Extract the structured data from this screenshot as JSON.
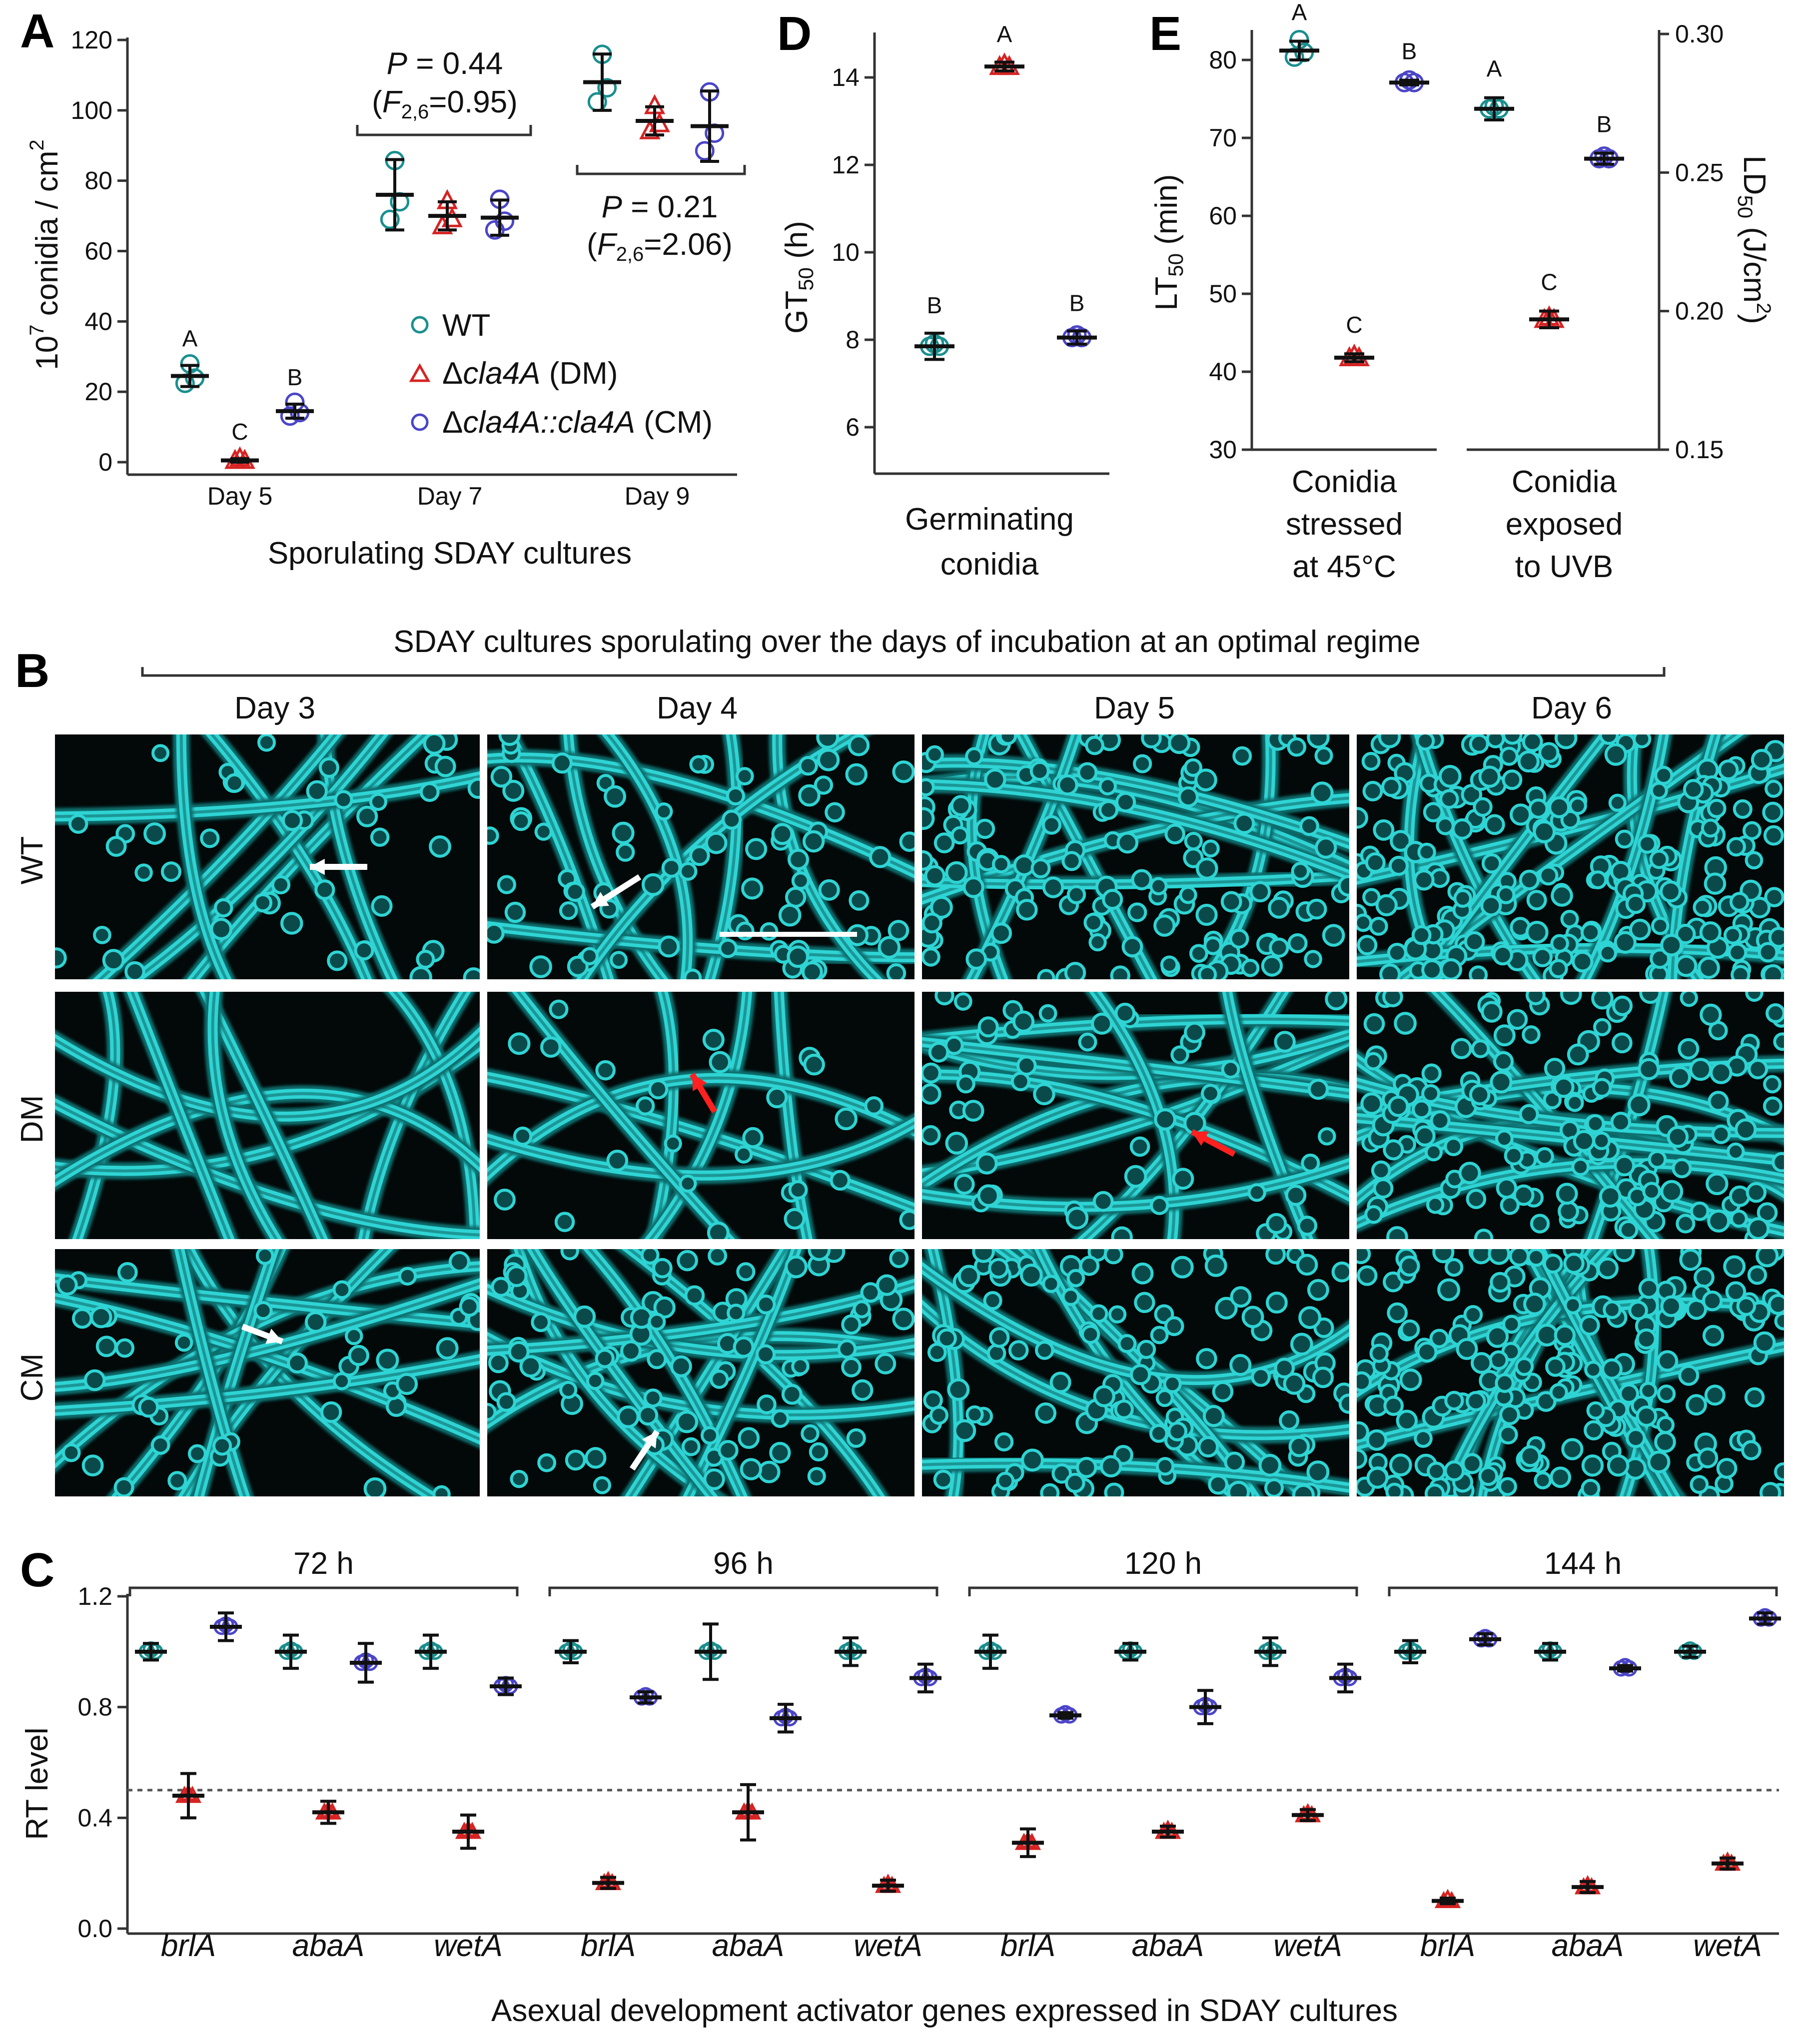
{
  "colors": {
    "wt": "#1b8f8f",
    "dm": "#d62222",
    "cm": "#4b45c8",
    "micro_bg": "#030808",
    "hypha": "#2fd4d4"
  },
  "panels": {
    "A": "A",
    "B": "B",
    "C": "C",
    "D": "D",
    "E": "E"
  },
  "panel_a": {
    "ylabel_base": "10",
    "ylabel_exp": "7",
    "ylabel_rest": " conidia / cm",
    "ylabel_sq": "2",
    "xlabel": "Sporulating SDAY cultures",
    "stat1": {
      "p": "P = 0.44",
      "f_open": "(F",
      "f_sub": "2,6",
      "f_val": "=0.95)"
    },
    "stat2": {
      "p": "P = 0.21",
      "f_open": "(F",
      "f_sub": "2,6",
      "f_val": "=2.06)"
    },
    "legend": [
      {
        "symbol": "circle",
        "prefix": "",
        "italic": "",
        "suffix": "WT"
      },
      {
        "symbol": "triangle",
        "prefix": "Δ",
        "italic": "cla4A",
        "suffix": " (DM)"
      },
      {
        "symbol": "circle-blue",
        "prefix": "Δ",
        "italic": "cla4A::cla4A",
        "suffix": " (CM)"
      }
    ]
  },
  "panel_d": {
    "ylabel": "GT",
    "ylabel_sub": "50",
    "ylabel_unit": " (h)",
    "xlabel_1": "Germinating",
    "xlabel_2": "conidia"
  },
  "panel_e": {
    "ylabel_left": "LT",
    "ylabel_left_sub": "50",
    "ylabel_left_unit": " (min)",
    "ylabel_right": "LD",
    "ylabel_right_sub": "50",
    "ylabel_right_unit": " (J/cm",
    "ylabel_right_sq": "2",
    "ylabel_right_close": ")",
    "group1": [
      "Conidia",
      "stressed",
      "at 45°C"
    ],
    "group2": [
      "Conidia",
      "exposed",
      "to UVB"
    ]
  },
  "panel_b": {
    "title": "SDAY cultures sporulating over the days of incubation at an optimal regime",
    "columns": [
      "Day 3",
      "Day 4",
      "Day 5",
      "Day 6"
    ],
    "rows": [
      "WT",
      "DM",
      "CM"
    ]
  },
  "panel_c": {
    "ylabel": "RT level",
    "xlabel": "Asexual development activator genes expressed in SDAY cultures",
    "groups": [
      "72 h",
      "96 h",
      "120 h",
      "144 h"
    ],
    "genes": [
      "brlA",
      "abaA",
      "wetA",
      "brlA",
      "abaA",
      "wetA",
      "brlA",
      "abaA",
      "wetA",
      "brlA",
      "abaA",
      "wetA"
    ]
  },
  "chart_data": [
    {
      "type": "scatter",
      "panel": "A",
      "xlabel": "Sporulating SDAY cultures",
      "ylabel": "10^7 conidia / cm^2",
      "categories": [
        "Day 5",
        "Day 7",
        "Day 9"
      ],
      "ylim": [
        0,
        120
      ],
      "yticks": [
        0,
        20,
        40,
        60,
        80,
        100,
        120
      ],
      "series": [
        {
          "name": "WT",
          "means": [
            24.5,
            76,
            108
          ],
          "sd": [
            3,
            10,
            8
          ]
        },
        {
          "name": "Δcla4A (DM)",
          "means": [
            0.5,
            70,
            97
          ],
          "sd": [
            0.5,
            4,
            4
          ]
        },
        {
          "name": "Δcla4A::cla4A (CM)",
          "means": [
            14.5,
            69.5,
            95.5
          ],
          "sd": [
            2,
            5,
            10
          ]
        }
      ],
      "letters": {
        "Day 5": [
          "A",
          "C",
          "B"
        ]
      }
    },
    {
      "type": "scatter",
      "panel": "D",
      "ylabel": "GT50 (h)",
      "ylim": [
        5.5,
        15
      ],
      "yticks": [
        6,
        8,
        10,
        12,
        14
      ],
      "categories": [
        "WT",
        "DM",
        "CM"
      ],
      "values": [
        7.85,
        14.25,
        8.05
      ],
      "sd": [
        0.3,
        0.1,
        0.15
      ],
      "letters": [
        "B",
        "A",
        "B"
      ]
    },
    {
      "type": "scatter",
      "panel": "E",
      "ylabel": "LT50 (min)",
      "ylabel_right": "LD50 (J/cm2)",
      "ylim": [
        30,
        85
      ],
      "yticks": [
        30,
        40,
        50,
        60,
        70,
        80
      ],
      "ylim_right": [
        0.15,
        0.3
      ],
      "yticks_right": [
        "0.15",
        "0.20",
        "0.25",
        "0.30"
      ],
      "groups": [
        "Conidia stressed at 45°C",
        "Conidia exposed to UVB"
      ],
      "series": [
        {
          "group": "Conidia stressed at 45°C",
          "axis": "left",
          "values": [
            81.2,
            41.8,
            77.1
          ],
          "sd": [
            1.2,
            0.5,
            0.3
          ],
          "letters": [
            "A",
            "C",
            "B"
          ]
        },
        {
          "group": "Conidia exposed to UVB",
          "axis": "right",
          "values": [
            0.273,
            0.197,
            0.255
          ],
          "sd": [
            0.004,
            0.003,
            0.002
          ],
          "letters": [
            "A",
            "C",
            "B"
          ]
        }
      ]
    },
    {
      "type": "scatter",
      "panel": "C",
      "ylabel": "RT level",
      "ylim": [
        0,
        1.2
      ],
      "yticks": [
        "0.0",
        "0.4",
        "0.8",
        "1.2"
      ],
      "reference_line": 0.5,
      "groups": [
        "72 h",
        "96 h",
        "120 h",
        "144 h"
      ],
      "genes": [
        "brlA",
        "abaA",
        "wetA"
      ],
      "series": [
        {
          "name": "WT",
          "values": [
            1.0,
            1.0,
            1.0,
            1.0,
            1.0,
            1.0,
            1.0,
            1.0,
            1.0,
            1.0,
            1.0,
            1.0
          ]
        },
        {
          "name": "DM",
          "values": [
            0.48,
            0.42,
            0.35,
            0.165,
            0.42,
            0.155,
            0.31,
            0.35,
            0.41,
            0.1,
            0.15,
            0.235
          ]
        },
        {
          "name": "CM",
          "values": [
            1.09,
            0.96,
            0.875,
            0.835,
            0.76,
            0.905,
            0.77,
            0.8,
            0.905,
            1.045,
            0.94,
            1.12
          ]
        }
      ]
    }
  ]
}
